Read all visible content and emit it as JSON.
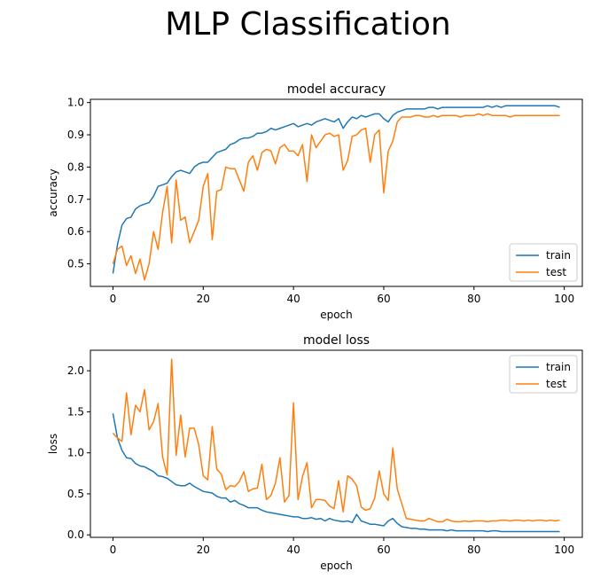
{
  "figure": {
    "suptitle": "MLP Classification"
  },
  "colors": {
    "train": "#1f77b4",
    "test": "#ff7f0e",
    "axis": "#000000",
    "legend_border": "#cccccc"
  },
  "chart_data": [
    {
      "type": "line",
      "title": "model accuracy",
      "xlabel": "epoch",
      "ylabel": "accuracy",
      "xlim": [
        -5,
        104
      ],
      "ylim": [
        0.43,
        1.01
      ],
      "xticks": [
        0,
        20,
        40,
        60,
        80,
        100
      ],
      "yticks": [
        0.5,
        0.6,
        0.7,
        0.8,
        0.9,
        1.0
      ],
      "ytick_labels": [
        "0.5",
        "0.6",
        "0.7",
        "0.8",
        "0.9",
        "1.0"
      ],
      "legend_loc": "lower right",
      "x": [
        0,
        1,
        2,
        3,
        4,
        5,
        6,
        7,
        8,
        9,
        10,
        11,
        12,
        13,
        14,
        15,
        16,
        17,
        18,
        19,
        20,
        21,
        22,
        23,
        24,
        25,
        26,
        27,
        28,
        29,
        30,
        31,
        32,
        33,
        34,
        35,
        36,
        37,
        38,
        39,
        40,
        41,
        42,
        43,
        44,
        45,
        46,
        47,
        48,
        49,
        50,
        51,
        52,
        53,
        54,
        55,
        56,
        57,
        58,
        59,
        60,
        61,
        62,
        63,
        64,
        65,
        66,
        67,
        68,
        69,
        70,
        71,
        72,
        73,
        74,
        75,
        76,
        77,
        78,
        79,
        80,
        81,
        82,
        83,
        84,
        85,
        86,
        87,
        88,
        89,
        90,
        91,
        92,
        93,
        94,
        95,
        96,
        97,
        98,
        99
      ],
      "series": [
        {
          "name": "train",
          "color": "#1f77b4",
          "values": [
            0.47,
            0.56,
            0.62,
            0.64,
            0.645,
            0.67,
            0.68,
            0.685,
            0.69,
            0.71,
            0.74,
            0.745,
            0.75,
            0.77,
            0.785,
            0.79,
            0.785,
            0.78,
            0.8,
            0.81,
            0.815,
            0.815,
            0.83,
            0.845,
            0.85,
            0.855,
            0.87,
            0.875,
            0.885,
            0.89,
            0.89,
            0.895,
            0.905,
            0.905,
            0.91,
            0.92,
            0.915,
            0.92,
            0.925,
            0.93,
            0.935,
            0.925,
            0.93,
            0.935,
            0.93,
            0.94,
            0.945,
            0.95,
            0.945,
            0.94,
            0.95,
            0.92,
            0.94,
            0.955,
            0.95,
            0.96,
            0.955,
            0.96,
            0.965,
            0.965,
            0.95,
            0.94,
            0.96,
            0.97,
            0.975,
            0.98,
            0.98,
            0.98,
            0.98,
            0.98,
            0.985,
            0.985,
            0.98,
            0.985,
            0.985,
            0.985,
            0.985,
            0.985,
            0.985,
            0.985,
            0.985,
            0.985,
            0.985,
            0.99,
            0.985,
            0.99,
            0.985,
            0.99,
            0.99,
            0.99,
            0.99,
            0.99,
            0.99,
            0.99,
            0.99,
            0.99,
            0.99,
            0.99,
            0.99,
            0.985
          ]
        },
        {
          "name": "test",
          "color": "#ff7f0e",
          "values": [
            0.5,
            0.545,
            0.555,
            0.495,
            0.525,
            0.47,
            0.515,
            0.45,
            0.5,
            0.6,
            0.545,
            0.66,
            0.74,
            0.565,
            0.76,
            0.635,
            0.645,
            0.565,
            0.6,
            0.635,
            0.74,
            0.78,
            0.575,
            0.725,
            0.73,
            0.8,
            0.795,
            0.795,
            0.76,
            0.725,
            0.815,
            0.835,
            0.79,
            0.845,
            0.855,
            0.85,
            0.81,
            0.86,
            0.87,
            0.85,
            0.85,
            0.835,
            0.87,
            0.755,
            0.9,
            0.86,
            0.88,
            0.9,
            0.905,
            0.895,
            0.9,
            0.79,
            0.82,
            0.895,
            0.9,
            0.915,
            0.92,
            0.815,
            0.9,
            0.915,
            0.72,
            0.85,
            0.88,
            0.94,
            0.955,
            0.955,
            0.955,
            0.96,
            0.96,
            0.955,
            0.955,
            0.96,
            0.955,
            0.96,
            0.96,
            0.96,
            0.96,
            0.955,
            0.96,
            0.96,
            0.96,
            0.965,
            0.96,
            0.965,
            0.96,
            0.96,
            0.96,
            0.96,
            0.955,
            0.96,
            0.96,
            0.96,
            0.96,
            0.96,
            0.96,
            0.96,
            0.96,
            0.96,
            0.96,
            0.96
          ]
        }
      ]
    },
    {
      "type": "line",
      "title": "model loss",
      "xlabel": "epoch",
      "ylabel": "loss",
      "xlim": [
        -5,
        104
      ],
      "ylim": [
        -0.03,
        2.25
      ],
      "xticks": [
        0,
        20,
        40,
        60,
        80,
        100
      ],
      "yticks": [
        0.0,
        0.5,
        1.0,
        1.5,
        2.0
      ],
      "ytick_labels": [
        "0.0",
        "0.5",
        "1.0",
        "1.5",
        "2.0"
      ],
      "legend_loc": "upper right",
      "x": [
        0,
        1,
        2,
        3,
        4,
        5,
        6,
        7,
        8,
        9,
        10,
        11,
        12,
        13,
        14,
        15,
        16,
        17,
        18,
        19,
        20,
        21,
        22,
        23,
        24,
        25,
        26,
        27,
        28,
        29,
        30,
        31,
        32,
        33,
        34,
        35,
        36,
        37,
        38,
        39,
        40,
        41,
        42,
        43,
        44,
        45,
        46,
        47,
        48,
        49,
        50,
        51,
        52,
        53,
        54,
        55,
        56,
        57,
        58,
        59,
        60,
        61,
        62,
        63,
        64,
        65,
        66,
        67,
        68,
        69,
        70,
        71,
        72,
        73,
        74,
        75,
        76,
        77,
        78,
        79,
        80,
        81,
        82,
        83,
        84,
        85,
        86,
        87,
        88,
        89,
        90,
        91,
        92,
        93,
        94,
        95,
        96,
        97,
        98,
        99
      ],
      "series": [
        {
          "name": "train",
          "color": "#1f77b4",
          "values": [
            1.48,
            1.18,
            1.03,
            0.94,
            0.93,
            0.87,
            0.84,
            0.83,
            0.8,
            0.77,
            0.72,
            0.71,
            0.69,
            0.65,
            0.61,
            0.6,
            0.6,
            0.63,
            0.59,
            0.56,
            0.53,
            0.52,
            0.51,
            0.47,
            0.45,
            0.45,
            0.4,
            0.42,
            0.38,
            0.36,
            0.33,
            0.33,
            0.33,
            0.3,
            0.28,
            0.27,
            0.26,
            0.25,
            0.24,
            0.23,
            0.22,
            0.22,
            0.2,
            0.2,
            0.21,
            0.19,
            0.2,
            0.17,
            0.2,
            0.18,
            0.17,
            0.16,
            0.17,
            0.15,
            0.25,
            0.17,
            0.15,
            0.13,
            0.13,
            0.12,
            0.11,
            0.17,
            0.2,
            0.14,
            0.1,
            0.09,
            0.08,
            0.08,
            0.07,
            0.07,
            0.06,
            0.06,
            0.06,
            0.06,
            0.05,
            0.06,
            0.05,
            0.05,
            0.05,
            0.05,
            0.05,
            0.05,
            0.05,
            0.04,
            0.05,
            0.05,
            0.04,
            0.04,
            0.04,
            0.04,
            0.04,
            0.04,
            0.04,
            0.04,
            0.04,
            0.04,
            0.04,
            0.04,
            0.04,
            0.04
          ]
        },
        {
          "name": "test",
          "color": "#ff7f0e",
          "values": [
            1.24,
            1.18,
            1.14,
            1.73,
            1.22,
            1.58,
            1.5,
            1.77,
            1.28,
            1.38,
            1.6,
            0.95,
            0.73,
            2.14,
            0.97,
            1.46,
            0.95,
            1.3,
            1.3,
            1.1,
            0.72,
            0.67,
            1.32,
            0.8,
            0.74,
            0.55,
            0.6,
            0.59,
            0.65,
            0.77,
            0.53,
            0.56,
            0.57,
            0.86,
            0.43,
            0.48,
            0.63,
            0.94,
            0.4,
            0.48,
            1.61,
            0.43,
            0.71,
            0.88,
            0.33,
            0.43,
            0.43,
            0.42,
            0.35,
            0.32,
            0.66,
            0.28,
            0.72,
            0.68,
            0.6,
            0.34,
            0.3,
            0.32,
            0.45,
            0.78,
            0.5,
            0.42,
            1.06,
            0.56,
            0.38,
            0.2,
            0.19,
            0.18,
            0.17,
            0.17,
            0.2,
            0.18,
            0.16,
            0.16,
            0.19,
            0.17,
            0.16,
            0.16,
            0.17,
            0.16,
            0.17,
            0.17,
            0.17,
            0.16,
            0.17,
            0.17,
            0.18,
            0.18,
            0.17,
            0.18,
            0.18,
            0.17,
            0.18,
            0.17,
            0.18,
            0.18,
            0.17,
            0.18,
            0.17,
            0.18
          ]
        }
      ]
    }
  ]
}
